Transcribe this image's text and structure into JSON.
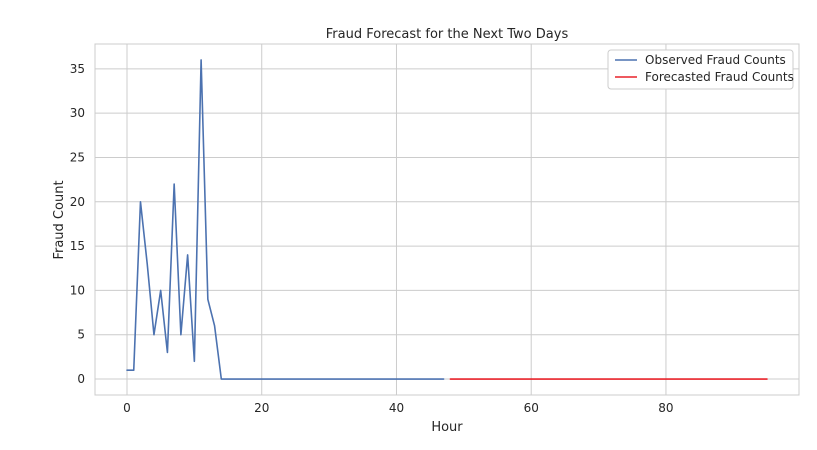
{
  "chart_data": {
    "type": "line",
    "title": "Fraud Forecast for the Next Two Days",
    "xlabel": "Hour",
    "ylabel": "Fraud Count",
    "xlim": [
      -4.75,
      99.75
    ],
    "ylim": [
      -1.8,
      37.8
    ],
    "xticks": [
      0,
      20,
      40,
      60,
      80
    ],
    "yticks": [
      0,
      5,
      10,
      15,
      20,
      25,
      30,
      35
    ],
    "grid": true,
    "legend_position": "top-right",
    "series": [
      {
        "name": "Observed Fraud Counts",
        "color": "#4c72b0",
        "x": [
          0,
          1,
          2,
          3,
          4,
          5,
          6,
          7,
          8,
          9,
          10,
          11,
          12,
          13,
          14,
          15,
          16,
          17,
          18,
          19,
          20,
          21,
          22,
          23,
          24,
          25,
          26,
          27,
          28,
          29,
          30,
          31,
          32,
          33,
          34,
          35,
          36,
          37,
          38,
          39,
          40,
          41,
          42,
          43,
          44,
          45,
          46,
          47
        ],
        "y": [
          1,
          1,
          20,
          13,
          5,
          10,
          3,
          22,
          5,
          14,
          2,
          36,
          9,
          6,
          0,
          0,
          0,
          0,
          0,
          0,
          0,
          0,
          0,
          0,
          0,
          0,
          0,
          0,
          0,
          0,
          0,
          0,
          0,
          0,
          0,
          0,
          0,
          0,
          0,
          0,
          0,
          0,
          0,
          0,
          0,
          0,
          0,
          0
        ]
      },
      {
        "name": "Forecasted Fraud Counts",
        "color": "#e8222a",
        "x": [
          48,
          49,
          50,
          51,
          52,
          53,
          54,
          55,
          56,
          57,
          58,
          59,
          60,
          61,
          62,
          63,
          64,
          65,
          66,
          67,
          68,
          69,
          70,
          71,
          72,
          73,
          74,
          75,
          76,
          77,
          78,
          79,
          80,
          81,
          82,
          83,
          84,
          85,
          86,
          87,
          88,
          89,
          90,
          91,
          92,
          93,
          94,
          95
        ],
        "y": [
          0,
          0,
          0,
          0,
          0,
          0,
          0,
          0,
          0,
          0,
          0,
          0,
          0,
          0,
          0,
          0,
          0,
          0,
          0,
          0,
          0,
          0,
          0,
          0,
          0,
          0,
          0,
          0,
          0,
          0,
          0,
          0,
          0,
          0,
          0,
          0,
          0,
          0,
          0,
          0,
          0,
          0,
          0,
          0,
          0,
          0,
          0,
          0
        ]
      }
    ]
  }
}
